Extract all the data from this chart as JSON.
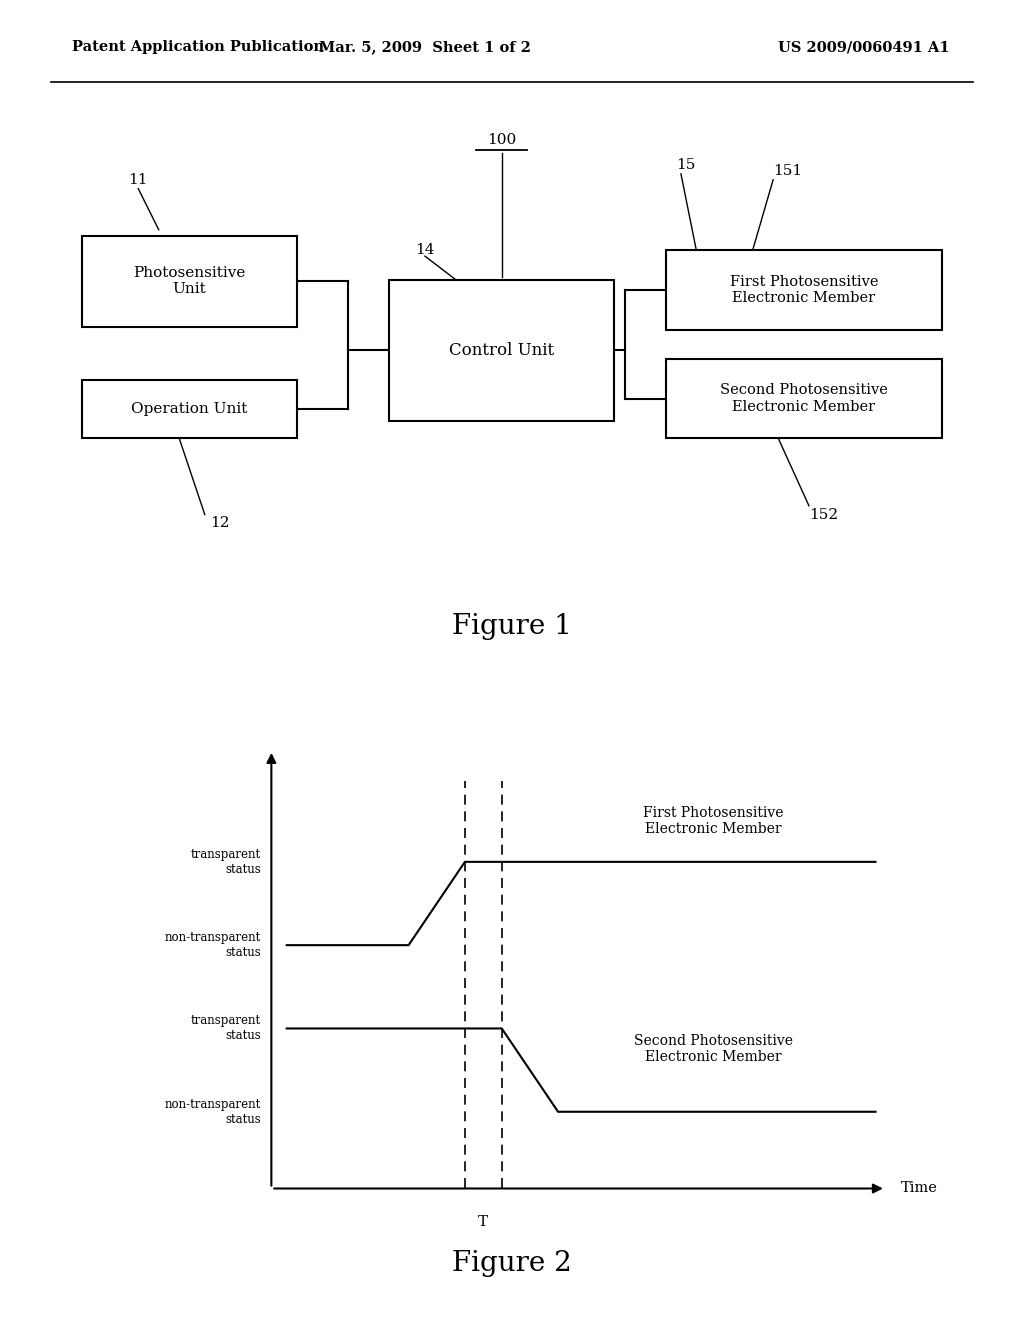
{
  "background_color": "#ffffff",
  "header_left": "Patent Application Publication",
  "header_mid": "Mar. 5, 2009  Sheet 1 of 2",
  "header_right": "US 2009/0060491 A1",
  "fig1_caption": "Figure 1",
  "fig2_caption": "Figure 2"
}
